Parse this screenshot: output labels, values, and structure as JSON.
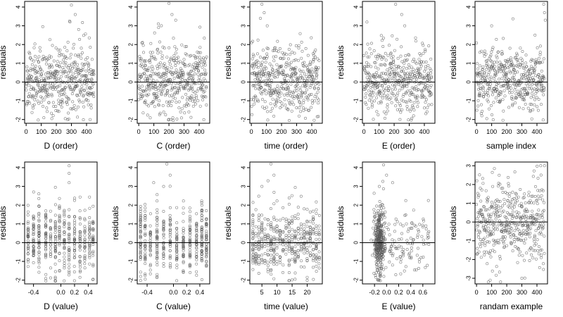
{
  "chart_data": [
    {
      "type": "scatter",
      "xlabel": "D (order)",
      "ylabel": "residuals",
      "xlim": [
        -10,
        470
      ],
      "ylim": [
        -2.2,
        4.3
      ],
      "xticks": [
        "0",
        "100",
        "200",
        "300",
        "400"
      ],
      "yticks": [
        "-2",
        "-1",
        "0",
        "1",
        "2",
        "3",
        "4"
      ],
      "hline": 0,
      "seed": 11,
      "pattern": "order",
      "n": 450,
      "outliers": [
        [
          300,
          4.1
        ],
        [
          325,
          3.6
        ],
        [
          290,
          3.2
        ],
        [
          110,
          2.95
        ]
      ]
    },
    {
      "type": "scatter",
      "xlabel": "C (order)",
      "ylabel": "residuals",
      "xlim": [
        -10,
        470
      ],
      "ylim": [
        -2.2,
        4.3
      ],
      "xticks": [
        "0",
        "100",
        "200",
        "300",
        "400"
      ],
      "yticks": [
        "-2",
        "-1",
        "0",
        "1",
        "2",
        "3",
        "4"
      ],
      "hline": 0,
      "seed": 23,
      "pattern": "order",
      "n": 450,
      "outliers": [
        [
          200,
          4.2
        ],
        [
          220,
          3.6
        ],
        [
          245,
          3.3
        ],
        [
          130,
          3.1
        ]
      ]
    },
    {
      "type": "scatter",
      "xlabel": "time (order)",
      "ylabel": "residuals",
      "xlim": [
        -10,
        470
      ],
      "ylim": [
        -2.2,
        4.3
      ],
      "xticks": [
        "0",
        "100",
        "200",
        "300",
        "400"
      ],
      "yticks": [
        "-2",
        "-1",
        "0",
        "1",
        "2",
        "3",
        "4"
      ],
      "hline": 0,
      "seed": 37,
      "pattern": "order",
      "n": 450,
      "outliers": [
        [
          70,
          4.15
        ],
        [
          85,
          3.7
        ],
        [
          60,
          3.4
        ],
        [
          105,
          3.0
        ]
      ]
    },
    {
      "type": "scatter",
      "xlabel": "E (order)",
      "ylabel": "residuals",
      "xlim": [
        -10,
        470
      ],
      "ylim": [
        -2.2,
        4.3
      ],
      "xticks": [
        "0",
        "100",
        "200",
        "300",
        "400"
      ],
      "yticks": [
        "-2",
        "-1",
        "0",
        "1",
        "2",
        "3",
        "4"
      ],
      "hline": 0,
      "seed": 41,
      "pattern": "order",
      "n": 450,
      "outliers": [
        [
          210,
          4.15
        ],
        [
          250,
          3.6
        ],
        [
          20,
          3.2
        ],
        [
          270,
          3.0
        ]
      ]
    },
    {
      "type": "scatter",
      "xlabel": "sample index",
      "ylabel": "residuals",
      "xlim": [
        -10,
        470
      ],
      "ylim": [
        -2.2,
        4.3
      ],
      "xticks": [
        "0",
        "100",
        "200",
        "300",
        "400"
      ],
      "yticks": [
        "-2",
        "-1",
        "0",
        "1",
        "2",
        "3",
        "4"
      ],
      "hline": 0,
      "seed": 53,
      "pattern": "order",
      "n": 450,
      "outliers": [
        [
          445,
          4.15
        ],
        [
          450,
          3.7
        ],
        [
          455,
          3.3
        ],
        [
          100,
          3.0
        ]
      ]
    },
    {
      "type": "scatter",
      "xlabel": "D (value)",
      "ylabel": "residuals",
      "xlim": [
        -0.53,
        0.53
      ],
      "ylim": [
        -2.2,
        4.3
      ],
      "xticks": [
        "-0.4",
        "0.0",
        "0.2",
        "0.4"
      ],
      "xtick_values": [
        -0.4,
        0.0,
        0.2,
        0.4
      ],
      "yticks": [
        "-2",
        "-1",
        "0",
        "1",
        "2",
        "3",
        "4"
      ],
      "hline": 0,
      "seed": 67,
      "pattern": "discrete",
      "n": 450,
      "levels": [
        -0.48,
        -0.4,
        -0.32,
        -0.22,
        -0.15,
        -0.08,
        -0.02,
        0.05,
        0.12,
        0.2,
        0.28,
        0.35,
        0.42,
        0.47
      ],
      "outliers": [
        [
          0.12,
          4.1
        ],
        [
          0.12,
          3.7
        ],
        [
          0.12,
          3.2
        ],
        [
          -0.08,
          2.95
        ]
      ]
    },
    {
      "type": "scatter",
      "xlabel": "C (value)",
      "ylabel": "residuals",
      "xlim": [
        -0.55,
        0.55
      ],
      "ylim": [
        -2.2,
        4.3
      ],
      "xticks": [
        "-0.4",
        "0.0",
        "0.2",
        "0.4"
      ],
      "xtick_values": [
        -0.4,
        0.0,
        0.2,
        0.4
      ],
      "yticks": [
        "-2",
        "-1",
        "0",
        "1",
        "2",
        "3",
        "4"
      ],
      "hline": 0,
      "seed": 71,
      "pattern": "discrete",
      "n": 450,
      "levels": [
        -0.5,
        -0.43,
        -0.35,
        -0.25,
        -0.15,
        -0.05,
        0.05,
        0.15,
        0.25,
        0.35,
        0.43,
        0.5
      ],
      "outliers": [
        [
          -0.1,
          4.2
        ],
        [
          -0.05,
          3.6
        ],
        [
          -0.3,
          3.2
        ],
        [
          -0.15,
          3.0
        ]
      ]
    },
    {
      "type": "scatter",
      "xlabel": "time (value)",
      "ylabel": "residuals",
      "xlim": [
        1,
        25
      ],
      "ylim": [
        -2.2,
        4.3
      ],
      "xticks": [
        "5",
        "10",
        "15",
        "20"
      ],
      "xtick_values": [
        5,
        10,
        15,
        20
      ],
      "yticks": [
        "-2",
        "-1",
        "0",
        "1",
        "2",
        "3",
        "4"
      ],
      "hline": 0,
      "seed": 83,
      "pattern": "discrete",
      "n": 450,
      "levels": [
        2,
        3,
        4,
        5,
        6,
        7,
        8,
        9,
        10,
        11,
        12,
        13,
        14,
        15,
        16,
        17,
        18,
        19,
        20,
        21,
        22,
        23,
        24
      ],
      "outliers": [
        [
          8,
          4.2
        ],
        [
          9,
          3.6
        ],
        [
          7,
          3.3
        ],
        [
          5,
          3.0
        ]
      ]
    },
    {
      "type": "scatter",
      "xlabel": "E (value)",
      "ylabel": "residuals",
      "xlim": [
        -0.4,
        0.8
      ],
      "ylim": [
        -2.2,
        4.3
      ],
      "xticks": [
        "-0.2",
        "0.0",
        "0.2",
        "0.4",
        "0.6"
      ],
      "xtick_values": [
        -0.2,
        0.0,
        0.2,
        0.4,
        0.6
      ],
      "yticks": [
        "-2",
        "-1",
        "0",
        "1",
        "2",
        "3",
        "4"
      ],
      "hline": 0,
      "seed": 97,
      "pattern": "skewed",
      "n": 450,
      "outliers": [
        [
          -0.05,
          4.15
        ],
        [
          0.0,
          3.6
        ],
        [
          0.1,
          3.2
        ],
        [
          -0.12,
          3.0
        ]
      ]
    },
    {
      "type": "scatter",
      "xlabel": "randam example",
      "ylabel": "residuals",
      "xlim": [
        -10,
        470
      ],
      "ylim": [
        -3.3,
        3.2
      ],
      "xticks": [
        "0",
        "100",
        "200",
        "300",
        "400"
      ],
      "yticks": [
        "-3",
        "-2",
        "-1",
        "0",
        "1",
        "2",
        "3"
      ],
      "hline": 0,
      "seed": 109,
      "pattern": "random",
      "n": 450,
      "outliers": [
        [
          450,
          3.0
        ],
        [
          300,
          -3.0
        ],
        [
          90,
          -3.1
        ]
      ]
    }
  ],
  "style": {
    "marker_color": "#555555",
    "axis_color": "#000000",
    "hline_color": "#000000",
    "background": "#ffffff"
  }
}
